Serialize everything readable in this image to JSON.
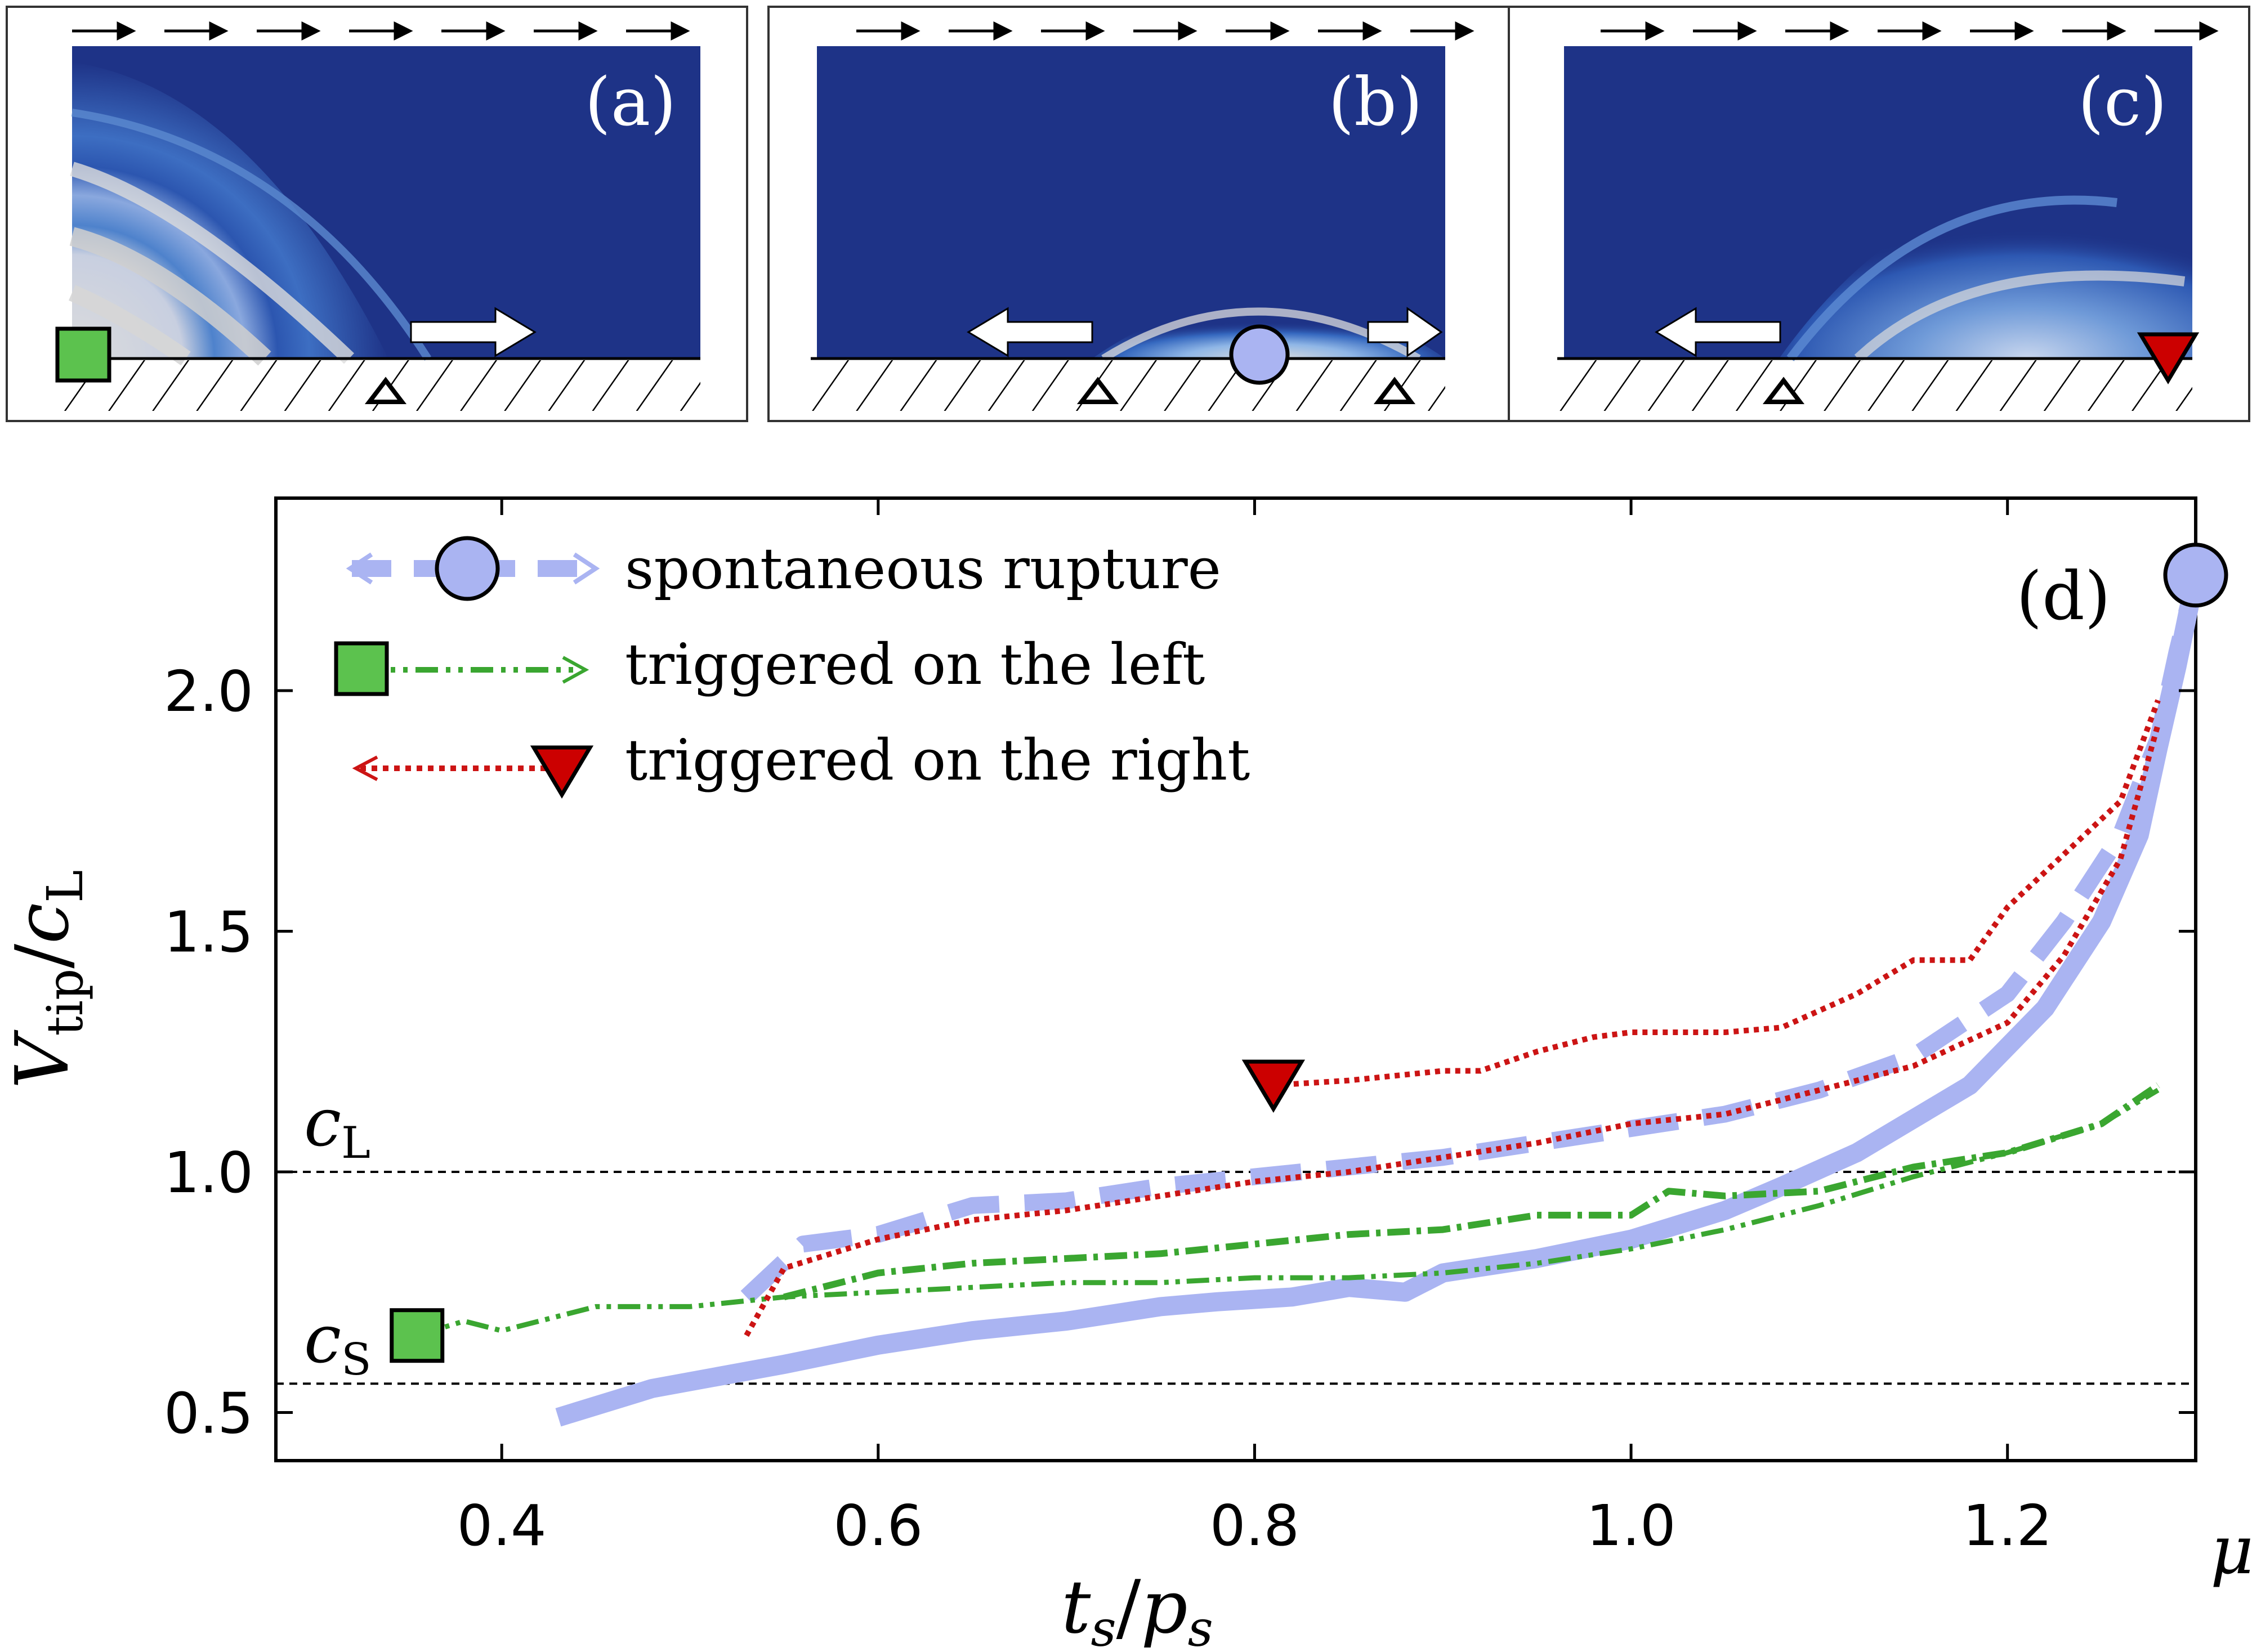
{
  "panels": [
    {
      "label": "(a)",
      "marker": "square",
      "arrows": [
        "right"
      ]
    },
    {
      "label": "(b)",
      "marker": "circle",
      "arrows": [
        "left",
        "right"
      ]
    },
    {
      "label": "(c)",
      "marker": "triangle",
      "arrows": [
        "left"
      ]
    }
  ],
  "colors": {
    "spontaneous": "#aab4f2",
    "left": "#3aa630",
    "right": "#cc1414",
    "square_fill": "#5cc24e",
    "circle_fill": "#aab4f2",
    "triangle_fill": "#cc0000",
    "field_bg": "#1e3387",
    "field_light": "#dcdcdc"
  },
  "chart_data": {
    "type": "line",
    "panel_label": "(d)",
    "xlabel": "t_s/p_s",
    "ylabel": "V_tip/c_L",
    "xlim": [
      0.28,
      1.3
    ],
    "ylim": [
      0.4,
      2.4
    ],
    "x_ticks": [
      {
        "value": 0.4,
        "label": "0.4"
      },
      {
        "value": 0.6,
        "label": "0.6"
      },
      {
        "value": 0.8,
        "label": "0.8"
      },
      {
        "value": 1.0,
        "label": "1.0"
      },
      {
        "value": 1.2,
        "label": "1.2"
      }
    ],
    "x_end_label": "μs",
    "y_ticks": [
      {
        "value": 0.5,
        "label": "0.5"
      },
      {
        "value": 1.0,
        "label": "1.0"
      },
      {
        "value": 1.5,
        "label": "1.5"
      },
      {
        "value": 2.0,
        "label": "2.0"
      }
    ],
    "reference_lines": [
      {
        "name": "cL",
        "value": 1.0
      },
      {
        "name": "cS",
        "value": 0.56
      }
    ],
    "legend": [
      {
        "name": "spontaneous rupture",
        "style": "spontaneous",
        "marker": "circle"
      },
      {
        "name": "triggered on the left",
        "style": "left",
        "marker": "square"
      },
      {
        "name": "triggered on the right",
        "style": "right",
        "marker": "triangle"
      }
    ],
    "series": [
      {
        "name": "spontaneous rupture",
        "part": "slow",
        "x": [
          0.43,
          0.48,
          0.55,
          0.6,
          0.65,
          0.7,
          0.75,
          0.78,
          0.82,
          0.85,
          0.88,
          0.9,
          0.95,
          1.0,
          1.05,
          1.08,
          1.12,
          1.18,
          1.22,
          1.25,
          1.27,
          1.28,
          1.29,
          1.3
        ],
        "y": [
          0.49,
          0.55,
          0.6,
          0.64,
          0.67,
          0.69,
          0.72,
          0.73,
          0.74,
          0.76,
          0.75,
          0.79,
          0.82,
          0.86,
          0.92,
          0.97,
          1.04,
          1.18,
          1.34,
          1.52,
          1.7,
          1.88,
          2.05,
          2.24
        ]
      },
      {
        "name": "spontaneous rupture",
        "part": "fast",
        "x": [
          0.53,
          0.56,
          0.6,
          0.65,
          0.7,
          0.75,
          0.8,
          0.85,
          0.9,
          0.95,
          1.0,
          1.05,
          1.1,
          1.15,
          1.2,
          1.23,
          1.26,
          1.28,
          1.29,
          1.3
        ],
        "y": [
          0.74,
          0.85,
          0.87,
          0.93,
          0.94,
          0.97,
          0.99,
          1.01,
          1.03,
          1.06,
          1.09,
          1.12,
          1.17,
          1.24,
          1.37,
          1.52,
          1.7,
          1.9,
          2.08,
          2.24
        ]
      },
      {
        "name": "triggered on the left",
        "part": "slow",
        "x": [
          0.355,
          0.38,
          0.4,
          0.45,
          0.5,
          0.55,
          0.6,
          0.65,
          0.7,
          0.75,
          0.8,
          0.85,
          0.9,
          0.95,
          1.0,
          1.05,
          1.1,
          1.15,
          1.2,
          1.25,
          1.28
        ],
        "y": [
          0.66,
          0.69,
          0.67,
          0.72,
          0.72,
          0.74,
          0.75,
          0.76,
          0.77,
          0.77,
          0.78,
          0.78,
          0.79,
          0.81,
          0.84,
          0.88,
          0.93,
          0.99,
          1.04,
          1.1,
          1.17
        ]
      },
      {
        "name": "triggered on the left",
        "part": "fast",
        "x": [
          0.55,
          0.6,
          0.65,
          0.7,
          0.75,
          0.8,
          0.85,
          0.9,
          0.95,
          1.0,
          1.02,
          1.05,
          1.1,
          1.15,
          1.2,
          1.25,
          1.28
        ],
        "y": [
          0.74,
          0.79,
          0.81,
          0.82,
          0.83,
          0.85,
          0.87,
          0.88,
          0.91,
          0.91,
          0.96,
          0.95,
          0.96,
          1.01,
          1.04,
          1.1,
          1.18
        ]
      },
      {
        "name": "triggered on the right",
        "part": "slow",
        "x": [
          0.53,
          0.55,
          0.6,
          0.65,
          0.7,
          0.75,
          0.8,
          0.85,
          0.9,
          0.95,
          1.0,
          1.05,
          1.1,
          1.15,
          1.2,
          1.23,
          1.26,
          1.28
        ],
        "y": [
          0.66,
          0.8,
          0.86,
          0.9,
          0.92,
          0.95,
          0.98,
          1.0,
          1.03,
          1.06,
          1.1,
          1.12,
          1.17,
          1.22,
          1.31,
          1.45,
          1.65,
          1.93
        ]
      },
      {
        "name": "triggered on the right",
        "part": "fast",
        "x": [
          0.81,
          0.85,
          0.9,
          0.92,
          0.95,
          0.98,
          1.0,
          1.05,
          1.08,
          1.12,
          1.15,
          1.18,
          1.2,
          1.23,
          1.26,
          1.28
        ],
        "y": [
          1.18,
          1.19,
          1.21,
          1.21,
          1.25,
          1.28,
          1.29,
          1.29,
          1.3,
          1.37,
          1.44,
          1.44,
          1.55,
          1.66,
          1.77,
          1.98
        ]
      }
    ],
    "markers": [
      {
        "name": "circle",
        "x": 1.3,
        "y": 2.24
      },
      {
        "name": "square",
        "x": 0.355,
        "y": 0.66
      },
      {
        "name": "triangle",
        "x": 0.81,
        "y": 1.18
      }
    ]
  }
}
